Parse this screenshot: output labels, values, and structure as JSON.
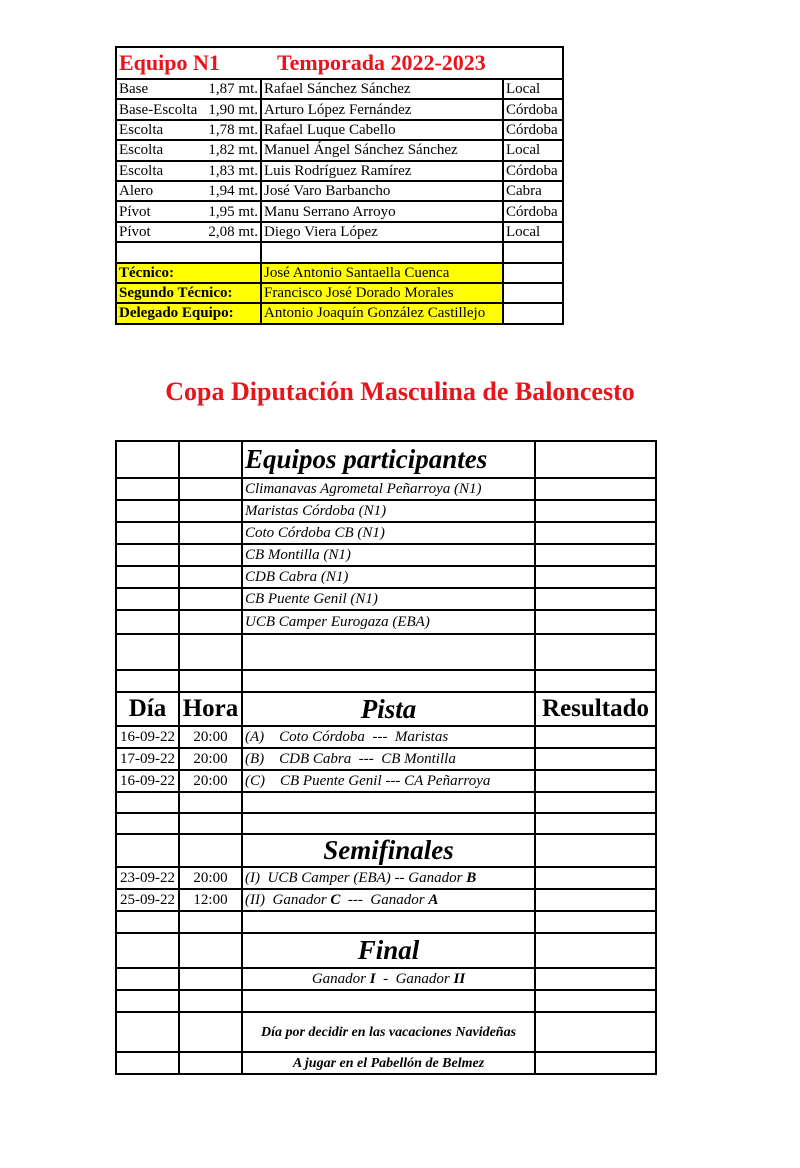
{
  "roster": {
    "team": "Equipo N1",
    "season": "Temporada 2022-2023",
    "players": [
      {
        "position": "Base",
        "height": "1,87 mt.",
        "name": "Rafael Sánchez Sánchez",
        "origin": "Local"
      },
      {
        "position": "Base-Escolta",
        "height": "1,90 mt.",
        "name": "Arturo López Fernández",
        "origin": "Córdoba"
      },
      {
        "position": "Escolta",
        "height": "1,78 mt.",
        "name": "Rafael Luque Cabello",
        "origin": "Córdoba"
      },
      {
        "position": "Escolta",
        "height": "1,82 mt.",
        "name": "Manuel Ángel Sánchez Sánchez",
        "origin": "Local"
      },
      {
        "position": "Escolta",
        "height": "1,83 mt.",
        "name": "Luis Rodríguez Ramírez",
        "origin": "Córdoba"
      },
      {
        "position": "Alero",
        "height": "1,94 mt.",
        "name": "José Varo Barbancho",
        "origin": "Cabra"
      },
      {
        "position": "Pívot",
        "height": "1,95 mt.",
        "name": "Manu Serrano Arroyo",
        "origin": "Córdoba"
      },
      {
        "position": "Pívot",
        "height": "2,08 mt.",
        "name": "Diego Viera López",
        "origin": "Local"
      }
    ],
    "staff": [
      {
        "role": "Técnico:",
        "name": "José Antonio Santaella Cuenca"
      },
      {
        "role": "Segundo Técnico:",
        "name": "Francisco José Dorado Morales"
      },
      {
        "role": "Delegado Equipo:",
        "name": "Antonio Joaquín González Castillejo"
      }
    ]
  },
  "title": "Copa Diputación Masculina de Baloncesto",
  "schedule": {
    "participants_heading": "Equipos participantes",
    "teams": [
      "Climanavas Agrometal Peñarroya  (N1)",
      "Maristas Córdoba  (N1)",
      "Coto Córdoba CB  (N1)",
      "CB Montilla  (N1)",
      "CDB Cabra  (N1)",
      "CB Puente Genil  (N1)",
      "UCB Camper Eurogaza (EBA)"
    ],
    "headers": {
      "day": "Día",
      "time": "Hora",
      "court": "Pista",
      "result": "Resultado"
    },
    "first_round": [
      {
        "day": "16-09-22",
        "time": "20:00",
        "match": [
          {
            "t": "(A)    Coto Córdoba  ---  Maristas",
            "b": false
          }
        ]
      },
      {
        "day": "17-09-22",
        "time": "20:00",
        "match": [
          {
            "t": "(B)    CDB Cabra  ---  CB Montilla",
            "b": false
          }
        ]
      },
      {
        "day": "16-09-22",
        "time": "20:00",
        "match": [
          {
            "t": "(C)    CB Puente Genil --- CA Peñarroya",
            "b": false
          }
        ]
      }
    ],
    "semis_heading": "Semifinales",
    "semis": [
      {
        "day": "23-09-22",
        "time": "20:00",
        "match": [
          {
            "t": "(I)  UCB Camper (EBA) -- Ganador ",
            "b": false
          },
          {
            "t": "B",
            "b": true
          }
        ]
      },
      {
        "day": "25-09-22",
        "time": "12:00",
        "match": [
          {
            "t": "(II)  Ganador ",
            "b": false
          },
          {
            "t": "C",
            "b": true
          },
          {
            "t": "  ---  Ganador ",
            "b": false
          },
          {
            "t": "A",
            "b": true
          }
        ]
      }
    ],
    "final_heading": "Final",
    "final_match": [
      {
        "t": "Ganador ",
        "b": false
      },
      {
        "t": "I",
        "b": true
      },
      {
        "t": "  -  Ganador ",
        "b": false
      },
      {
        "t": "II",
        "b": true
      }
    ],
    "final_note": "Día por decidir en las vacaciones Navideñas",
    "final_venue": "A jugar en el Pabellón de Belmez"
  }
}
